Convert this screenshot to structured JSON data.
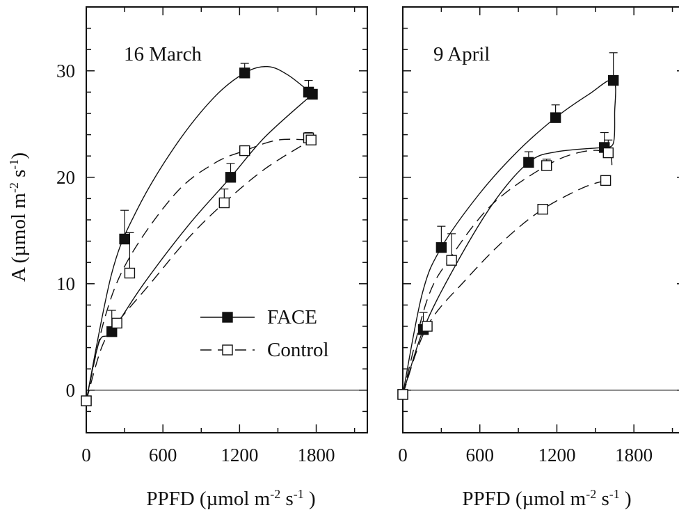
{
  "chart_data": [
    {
      "type": "scatter",
      "panel_label": "16 March",
      "xlabel": "PPFD (µmol m-2 s-1 )",
      "ylabel": "A (µmol m-2 s-1)",
      "xlim": [
        0,
        2200
      ],
      "ylim": [
        -4,
        36
      ],
      "xticks": [
        0,
        600,
        1200,
        1800
      ],
      "yticks": [
        0,
        10,
        20,
        30
      ],
      "zero_line": true,
      "legend": {
        "placement": "center-left",
        "entries": [
          "FACE",
          "Control"
        ]
      },
      "series": [
        {
          "name": "FACE",
          "marker": "filled-square",
          "line": "solid",
          "points": [
            {
              "x": 0,
              "y": -1.0
            },
            {
              "x": 200,
              "y": 5.5,
              "err": 2.0
            },
            {
              "x": 300,
              "y": 14.2,
              "err": 2.7
            },
            {
              "x": 1130,
              "y": 20.0,
              "err": 1.3
            },
            {
              "x": 1240,
              "y": 29.8,
              "err": 0.9
            },
            {
              "x": 1740,
              "y": 28.0,
              "err": 1.1
            },
            {
              "x": 1770,
              "y": 27.8
            }
          ],
          "curves": [
            [
              [
                0,
                -1
              ],
              [
                200,
                11
              ],
              [
                400,
                17
              ],
              [
                700,
                23
              ],
              [
                1000,
                27.5
              ],
              [
                1240,
                29.8
              ],
              [
                1420,
                30.4
              ],
              [
                1580,
                29.6
              ],
              [
                1770,
                27.8
              ]
            ],
            [
              [
                0,
                -1
              ],
              [
                100,
                4.5
              ],
              [
                200,
                5.5
              ],
              [
                450,
                10
              ],
              [
                800,
                15.5
              ],
              [
                1130,
                20.0
              ],
              [
                1400,
                23.8
              ],
              [
                1770,
                27.8
              ]
            ]
          ]
        },
        {
          "name": "Control",
          "marker": "open-square",
          "line": "dashed",
          "points": [
            {
              "x": 0,
              "y": -1.0
            },
            {
              "x": 240,
              "y": 6.3
            },
            {
              "x": 340,
              "y": 11.0,
              "err": 3.8
            },
            {
              "x": 1080,
              "y": 17.6,
              "err": 1.3
            },
            {
              "x": 1240,
              "y": 22.5
            },
            {
              "x": 1740,
              "y": 23.7,
              "err": 0.5
            },
            {
              "x": 1760,
              "y": 23.5
            }
          ],
          "curves": [
            [
              [
                0,
                -1
              ],
              [
                150,
                7
              ],
              [
                340,
                12.5
              ],
              [
                700,
                18.5
              ],
              [
                1000,
                21.3
              ],
              [
                1240,
                22.5
              ],
              [
                1500,
                23.5
              ],
              [
                1760,
                23.5
              ]
            ],
            [
              [
                0,
                -1
              ],
              [
                120,
                4.0
              ],
              [
                240,
                6.3
              ],
              [
                500,
                10
              ],
              [
                800,
                14.3
              ],
              [
                1080,
                17.6
              ],
              [
                1400,
                20.8
              ],
              [
                1760,
                23.5
              ]
            ]
          ]
        }
      ]
    },
    {
      "type": "scatter",
      "panel_label": "9 April",
      "xlabel": "PPFD (µmol m-2 s-1 )",
      "xlim": [
        0,
        2200
      ],
      "ylim": [
        -4,
        36
      ],
      "xticks": [
        0,
        600,
        1200,
        1800
      ],
      "zero_line": true,
      "series": [
        {
          "name": "FACE",
          "marker": "filled-square",
          "line": "solid",
          "points": [
            {
              "x": 0,
              "y": -0.4
            },
            {
              "x": 160,
              "y": 5.7,
              "err": 1.6
            },
            {
              "x": 300,
              "y": 13.4,
              "err": 2.0
            },
            {
              "x": 980,
              "y": 21.4,
              "err": 1.0
            },
            {
              "x": 1190,
              "y": 25.6,
              "err": 1.2
            },
            {
              "x": 1570,
              "y": 22.8,
              "err": 1.4
            },
            {
              "x": 1640,
              "y": 29.1,
              "err": 2.6
            }
          ],
          "curves": [
            [
              [
                0,
                -0.4
              ],
              [
                150,
                9
              ],
              [
                300,
                13.4
              ],
              [
                600,
                18.5
              ],
              [
                900,
                22.5
              ],
              [
                1190,
                25.6
              ],
              [
                1450,
                27.8
              ],
              [
                1640,
                29.1
              ],
              [
                1650,
                26
              ],
              [
                1640,
                23.2
              ],
              [
                1570,
                22.8
              ]
            ],
            [
              [
                0,
                -0.4
              ],
              [
                160,
                5.7
              ],
              [
                400,
                11.5
              ],
              [
                700,
                17.5
              ],
              [
                980,
                21.4
              ],
              [
                1200,
                22.4
              ],
              [
                1570,
                22.8
              ]
            ]
          ]
        },
        {
          "name": "Control",
          "marker": "open-square",
          "line": "dashed",
          "points": [
            {
              "x": 0,
              "y": -0.4
            },
            {
              "x": 190,
              "y": 6.0
            },
            {
              "x": 380,
              "y": 12.2,
              "err": 2.5
            },
            {
              "x": 1090,
              "y": 17.0
            },
            {
              "x": 1120,
              "y": 21.1,
              "err": 0.6
            },
            {
              "x": 1580,
              "y": 19.7
            },
            {
              "x": 1600,
              "y": 22.3,
              "err": 1.2
            }
          ],
          "curves": [
            [
              [
                0,
                -0.4
              ],
              [
                190,
                8.5
              ],
              [
                380,
                12.6
              ],
              [
                700,
                17.5
              ],
              [
                1120,
                21.1
              ],
              [
                1400,
                22.4
              ],
              [
                1600,
                22.3
              ],
              [
                1630,
                20.8
              ]
            ],
            [
              [
                0,
                -0.4
              ],
              [
                190,
                6.0
              ],
              [
                500,
                10.5
              ],
              [
                800,
                14.2
              ],
              [
                1090,
                17.0
              ],
              [
                1400,
                19.0
              ],
              [
                1580,
                19.7
              ]
            ]
          ]
        }
      ]
    }
  ]
}
